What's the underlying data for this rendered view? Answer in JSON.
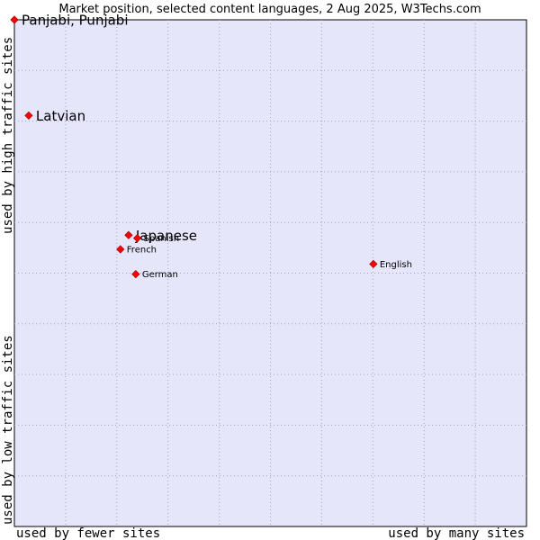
{
  "chart_data": {
    "type": "scatter",
    "title": "Market position, selected content languages, 2 Aug 2025, W3Techs.com",
    "xlabel_left": "used by fewer sites",
    "xlabel_right": "used by many sites",
    "ylabel_bottom": "used by low traffic sites",
    "ylabel_top": "used by high traffic sites",
    "xlim": [
      0,
      100
    ],
    "ylim": [
      0,
      100
    ],
    "grid": true,
    "colors": {
      "plot_bg": "#e6e6fa",
      "grid": "#a0a0c0",
      "point": "#ff0000",
      "point_stroke": "#990000"
    },
    "points": [
      {
        "name": "Panjabi, Punjabi",
        "x": 0.0,
        "y": 100.0,
        "emphasis": true
      },
      {
        "name": "Latvian",
        "x": 2.8,
        "y": 81.1,
        "emphasis": true
      },
      {
        "name": "Japanese",
        "x": 22.3,
        "y": 57.5,
        "emphasis": true
      },
      {
        "name": "Spanish",
        "x": 24.0,
        "y": 56.9,
        "emphasis": false
      },
      {
        "name": "French",
        "x": 20.7,
        "y": 54.7,
        "emphasis": false
      },
      {
        "name": "German",
        "x": 23.7,
        "y": 49.8,
        "emphasis": false
      },
      {
        "name": "English",
        "x": 70.1,
        "y": 51.8,
        "emphasis": false
      }
    ]
  }
}
